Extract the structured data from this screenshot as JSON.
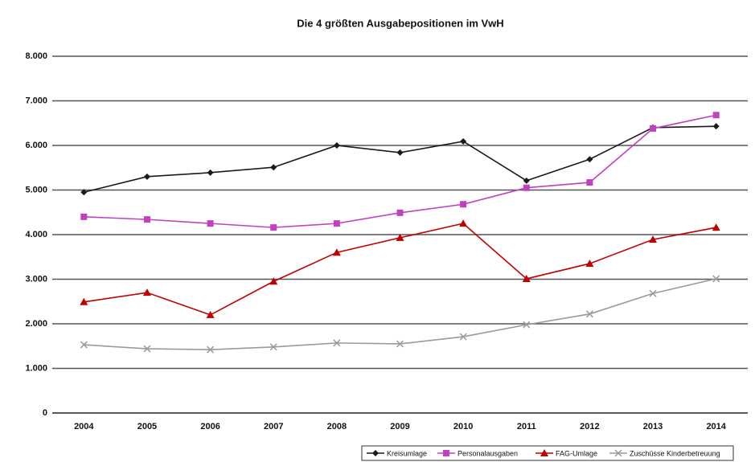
{
  "chart_data": {
    "type": "line",
    "title": "Die 4 größten Ausgabepositionen im VwH",
    "categories": [
      "2004",
      "2005",
      "2006",
      "2007",
      "2008",
      "2009",
      "2010",
      "2011",
      "2012",
      "2013",
      "2014"
    ],
    "series": [
      {
        "name": "Kreisumlage",
        "color": "#1a1a1a",
        "marker": "diamond",
        "values": [
          4950,
          5300,
          5390,
          5510,
          6000,
          5840,
          6090,
          5210,
          5690,
          6400,
          6430
        ]
      },
      {
        "name": "Personalausgaben",
        "color": "#c040c0",
        "marker": "square",
        "values": [
          4400,
          4340,
          4250,
          4160,
          4250,
          4490,
          4680,
          5050,
          5170,
          6380,
          6680
        ]
      },
      {
        "name": "FAG-Umlage",
        "color": "#c00000",
        "marker": "triangle",
        "values": [
          2490,
          2700,
          2200,
          2950,
          3600,
          3930,
          4250,
          3010,
          3350,
          3890,
          4160
        ]
      },
      {
        "name": "Zuschüsse Kinderbetreuung",
        "color": "#9a9a9a",
        "marker": "x",
        "values": [
          1530,
          1440,
          1420,
          1480,
          1570,
          1550,
          1710,
          1980,
          2220,
          2680,
          3010
        ]
      }
    ],
    "ylim": [
      0,
      8000
    ],
    "yticks": [
      0,
      {
        "value": 1000,
        "label": "1.000"
      },
      {
        "value": 2000,
        "label": "2.000"
      },
      {
        "value": 3000,
        "label": "3.000"
      },
      {
        "value": 4000,
        "label": "4.000"
      },
      {
        "value": 5000,
        "label": "5.000"
      },
      {
        "value": 6000,
        "label": "6.000"
      },
      {
        "value": 7000,
        "label": "7.000"
      },
      {
        "value": 8000,
        "label": "8.000"
      }
    ],
    "grid": true,
    "legend": "bottom-right"
  }
}
